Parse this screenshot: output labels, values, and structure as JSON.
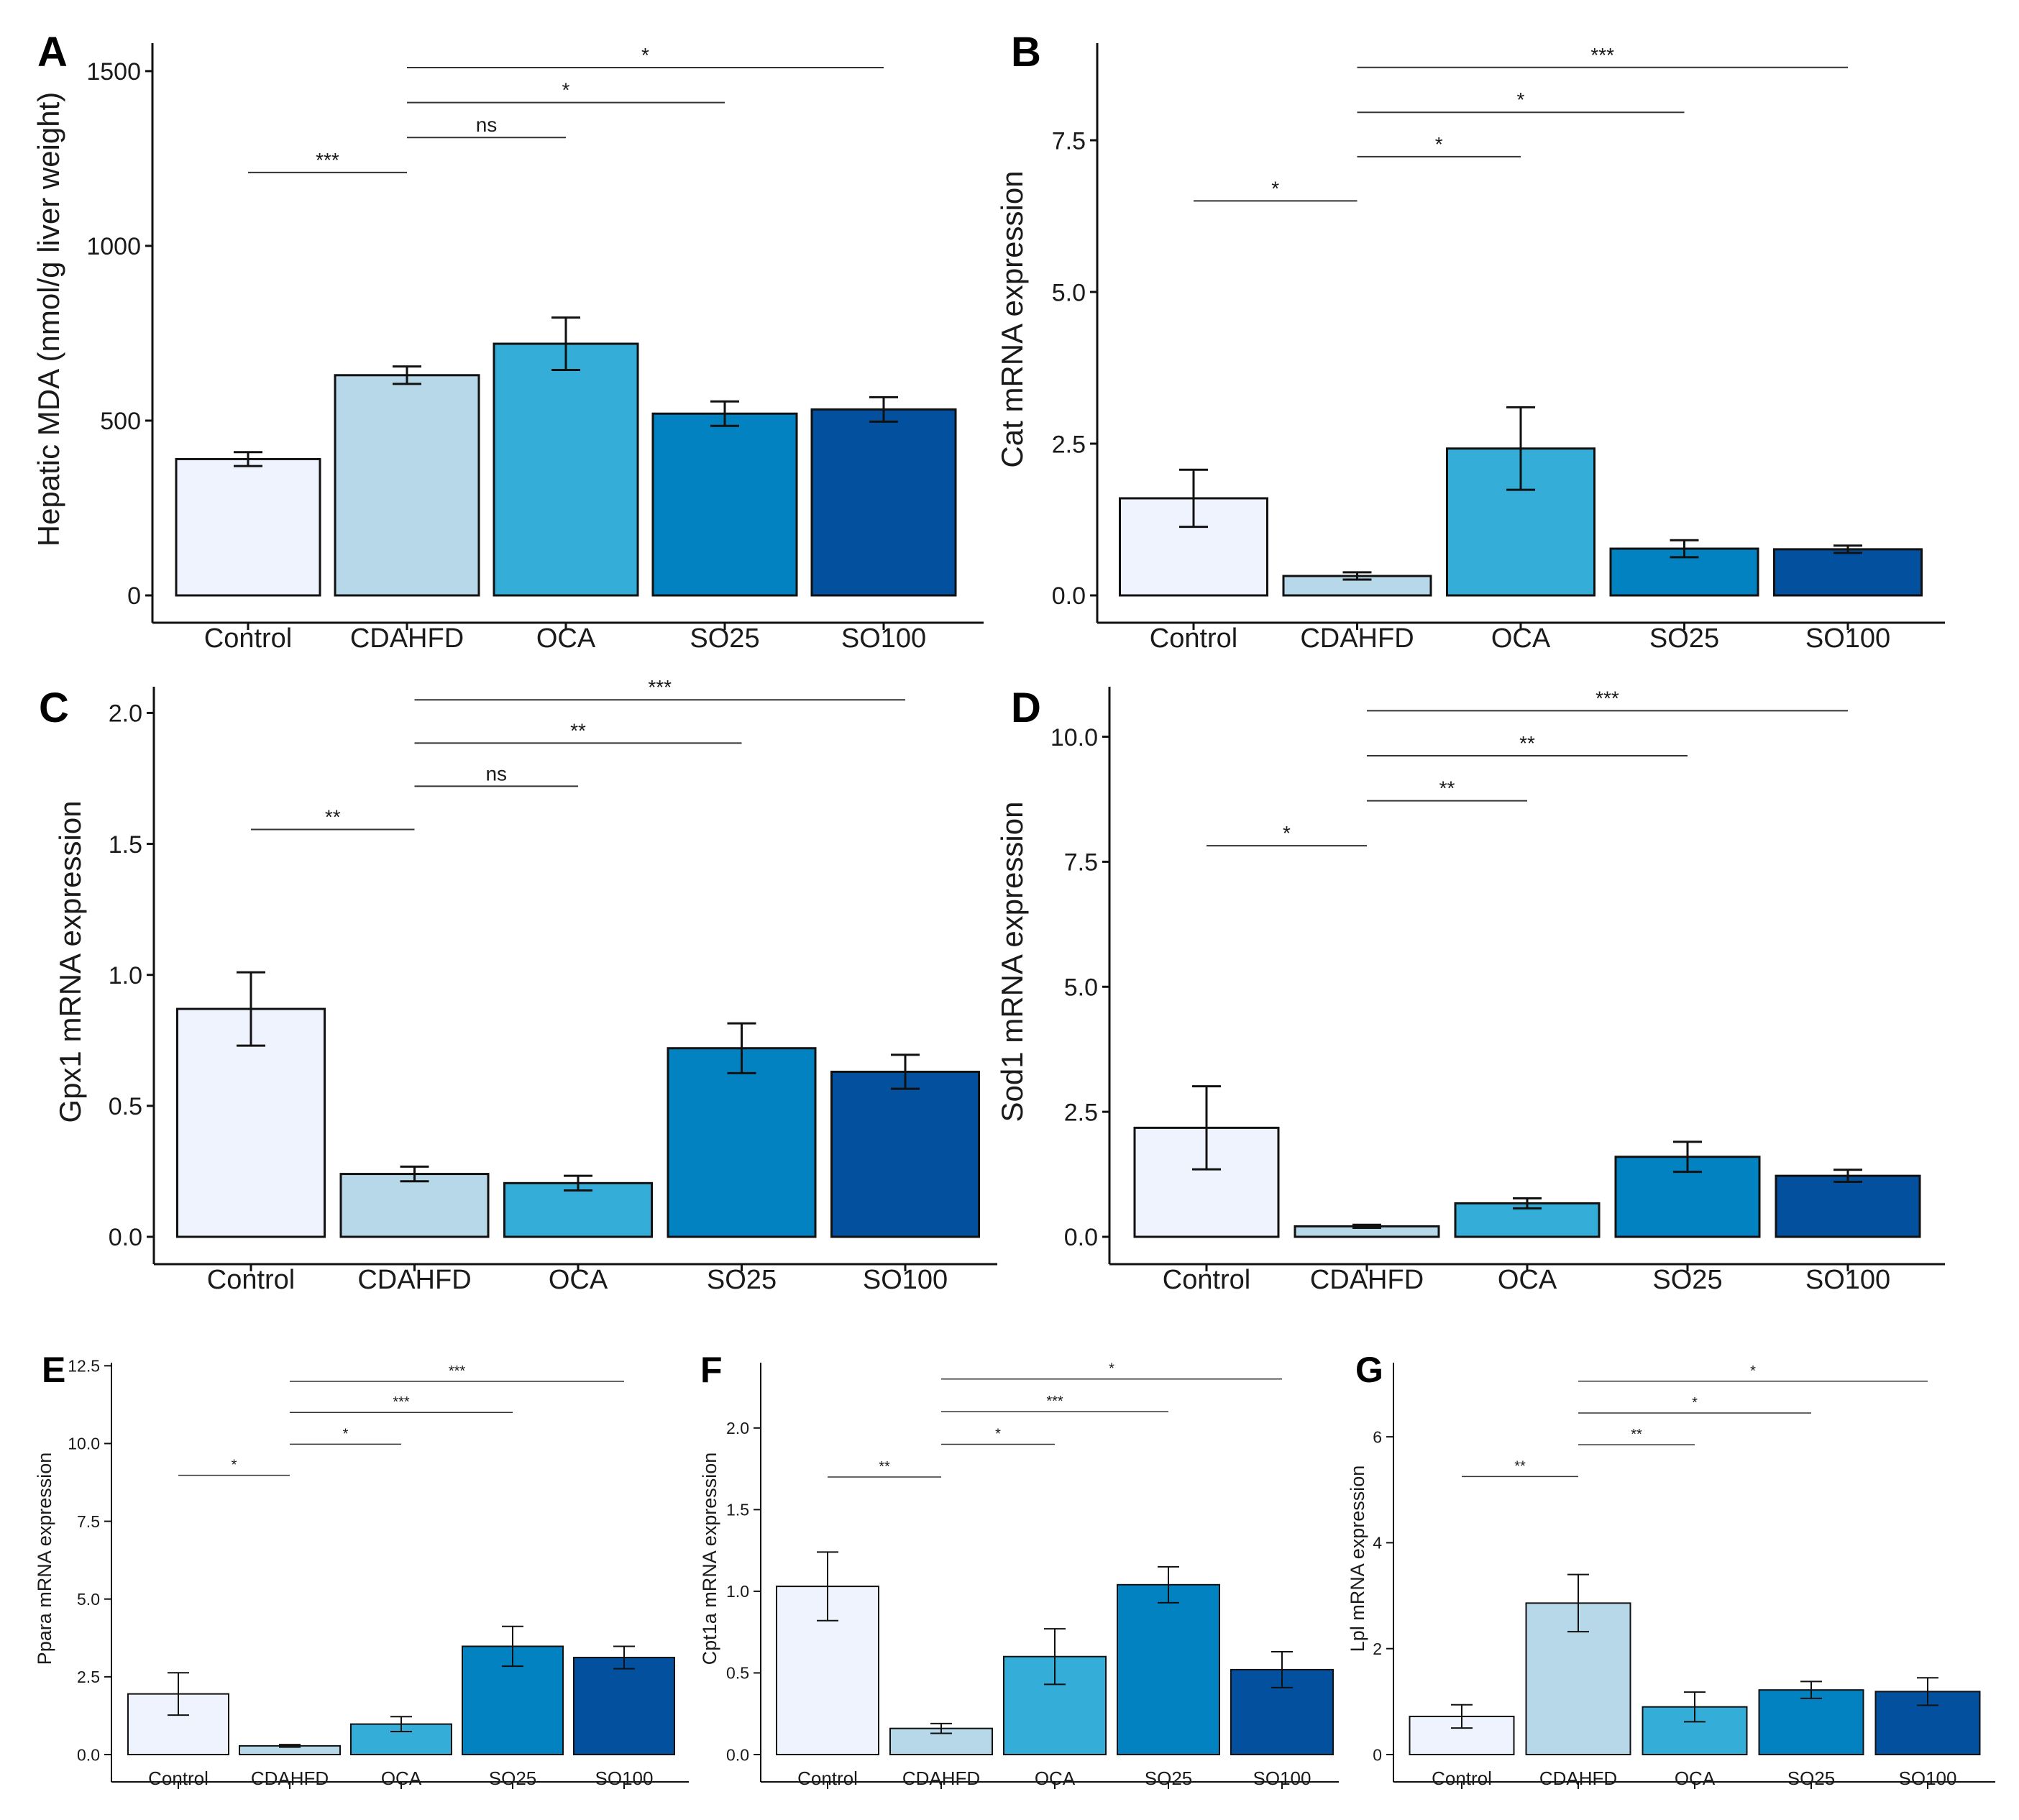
{
  "figure": {
    "colors": {
      "Control": "#EEF3FD",
      "CDAHFD": "#B7D8E8",
      "OCA": "#34AED8",
      "SO25": "#0282C1",
      "SO100": "#02509E",
      "outline": "#111111"
    }
  },
  "chart_data": [
    {
      "panel": "A",
      "type": "bar",
      "categories": [
        "Control",
        "CDAHFD",
        "OCA",
        "SO25",
        "SO100"
      ],
      "values": [
        390,
        630,
        720,
        520,
        532
      ],
      "errors": [
        20,
        25,
        75,
        35,
        35
      ],
      "ylabel": "Hepatic MDA (nmol/g liver weight)",
      "ylim": [
        0,
        1580
      ],
      "yticks": [
        0,
        500,
        1000,
        1500
      ],
      "tick_labels": [
        "0",
        "500",
        "1000",
        "1500"
      ],
      "significance": [
        {
          "from": 0,
          "to": 1,
          "y": 1210,
          "label": "***"
        },
        {
          "from": 1,
          "to": 2,
          "y": 1310,
          "label": "ns"
        },
        {
          "from": 1,
          "to": 3,
          "y": 1410,
          "label": "*"
        },
        {
          "from": 1,
          "to": 4,
          "y": 1510,
          "label": "*"
        }
      ]
    },
    {
      "panel": "B",
      "type": "bar",
      "categories": [
        "Control",
        "CDAHFD",
        "OCA",
        "SO25",
        "SO100"
      ],
      "values": [
        1.6,
        0.32,
        2.42,
        0.77,
        0.76
      ],
      "errors": [
        0.47,
        0.06,
        0.68,
        0.14,
        0.06
      ],
      "ylabel": "Cat mRNA expression",
      "ylim": [
        0,
        9.1
      ],
      "yticks": [
        0,
        2.5,
        5,
        7.5
      ],
      "tick_labels": [
        "0.0",
        "2.5",
        "5.0",
        "7.5"
      ],
      "significance": [
        {
          "from": 0,
          "to": 1,
          "y": 6.5,
          "label": "*"
        },
        {
          "from": 1,
          "to": 2,
          "y": 7.23,
          "label": "*"
        },
        {
          "from": 1,
          "to": 3,
          "y": 7.96,
          "label": "*"
        },
        {
          "from": 1,
          "to": 4,
          "y": 8.7,
          "label": "***"
        }
      ]
    },
    {
      "panel": "C",
      "type": "bar",
      "categories": [
        "Control",
        "CDAHFD",
        "OCA",
        "SO25",
        "SO100"
      ],
      "values": [
        0.87,
        0.24,
        0.205,
        0.72,
        0.63
      ],
      "errors": [
        0.14,
        0.028,
        0.028,
        0.095,
        0.065
      ],
      "ylabel": "Gpx1 mRNA expression",
      "ylim": [
        0,
        2.1
      ],
      "yticks": [
        0,
        0.5,
        1,
        1.5,
        2
      ],
      "tick_labels": [
        "0.0",
        "0.5",
        "1.0",
        "1.5",
        "2.0"
      ],
      "significance": [
        {
          "from": 0,
          "to": 1,
          "y": 1.555,
          "label": "**"
        },
        {
          "from": 1,
          "to": 2,
          "y": 1.72,
          "label": "ns"
        },
        {
          "from": 1,
          "to": 3,
          "y": 1.885,
          "label": "**"
        },
        {
          "from": 1,
          "to": 4,
          "y": 2.05,
          "label": "***"
        }
      ]
    },
    {
      "panel": "D",
      "type": "bar",
      "categories": [
        "Control",
        "CDAHFD",
        "OCA",
        "SO25",
        "SO100"
      ],
      "values": [
        2.18,
        0.21,
        0.67,
        1.6,
        1.22
      ],
      "errors": [
        0.83,
        0.03,
        0.1,
        0.3,
        0.12
      ],
      "ylabel": "Sod1 mRNA expression",
      "ylim": [
        0,
        11
      ],
      "yticks": [
        0,
        2.5,
        5,
        7.5,
        10
      ],
      "tick_labels": [
        "0.0",
        "2.5",
        "5.0",
        "7.5",
        "10.0"
      ],
      "significance": [
        {
          "from": 0,
          "to": 1,
          "y": 7.82,
          "label": "*"
        },
        {
          "from": 1,
          "to": 2,
          "y": 8.72,
          "label": "**"
        },
        {
          "from": 1,
          "to": 3,
          "y": 9.62,
          "label": "**"
        },
        {
          "from": 1,
          "to": 4,
          "y": 10.52,
          "label": "***"
        }
      ]
    },
    {
      "panel": "E",
      "type": "bar",
      "categories": [
        "Control",
        "CDAHFD",
        "OCA",
        "SO25",
        "SO100"
      ],
      "values": [
        1.95,
        0.28,
        0.98,
        3.48,
        3.12
      ],
      "errors": [
        0.68,
        0.04,
        0.24,
        0.64,
        0.36
      ],
      "ylabel": "Ppara mRNA expression",
      "ylim": [
        0,
        12.6
      ],
      "yticks": [
        0,
        2.5,
        5,
        7.5,
        10,
        12.5
      ],
      "tick_labels": [
        "0.0",
        "2.5",
        "5.0",
        "7.5",
        "10.0",
        "12.5"
      ],
      "significance": [
        {
          "from": 0,
          "to": 1,
          "y": 8.98,
          "label": "*"
        },
        {
          "from": 1,
          "to": 2,
          "y": 9.98,
          "label": "*"
        },
        {
          "from": 1,
          "to": 3,
          "y": 11.0,
          "label": "***"
        },
        {
          "from": 1,
          "to": 4,
          "y": 12.0,
          "label": "***"
        }
      ]
    },
    {
      "panel": "F",
      "type": "bar",
      "categories": [
        "Control",
        "CDAHFD",
        "OCA",
        "SO25",
        "SO100"
      ],
      "values": [
        1.03,
        0.16,
        0.6,
        1.04,
        0.52
      ],
      "errors": [
        0.21,
        0.03,
        0.17,
        0.11,
        0.11
      ],
      "ylabel": "Cpt1a mRNA expression",
      "ylim": [
        0,
        2.4
      ],
      "yticks": [
        0,
        0.5,
        1,
        1.5,
        2
      ],
      "tick_labels": [
        "0.0",
        "0.5",
        "1.0",
        "1.5",
        "2.0"
      ],
      "significance": [
        {
          "from": 0,
          "to": 1,
          "y": 1.7,
          "label": "**"
        },
        {
          "from": 1,
          "to": 2,
          "y": 1.9,
          "label": "*"
        },
        {
          "from": 1,
          "to": 3,
          "y": 2.1,
          "label": "***"
        },
        {
          "from": 1,
          "to": 4,
          "y": 2.3,
          "label": "*"
        }
      ]
    },
    {
      "panel": "G",
      "type": "bar",
      "categories": [
        "Control",
        "CDAHFD",
        "OCA",
        "SO25",
        "SO100"
      ],
      "values": [
        0.72,
        2.86,
        0.9,
        1.22,
        1.19
      ],
      "errors": [
        0.22,
        0.54,
        0.28,
        0.16,
        0.26
      ],
      "ylabel": "Lpl mRNA expression",
      "ylim": [
        0,
        7.4
      ],
      "yticks": [
        0,
        2,
        4,
        6
      ],
      "tick_labels": [
        "0",
        "2",
        "4",
        "6"
      ],
      "significance": [
        {
          "from": 0,
          "to": 1,
          "y": 5.25,
          "label": "**"
        },
        {
          "from": 1,
          "to": 2,
          "y": 5.85,
          "label": "**"
        },
        {
          "from": 1,
          "to": 3,
          "y": 6.45,
          "label": "*"
        },
        {
          "from": 1,
          "to": 4,
          "y": 7.05,
          "label": "*"
        }
      ]
    }
  ]
}
